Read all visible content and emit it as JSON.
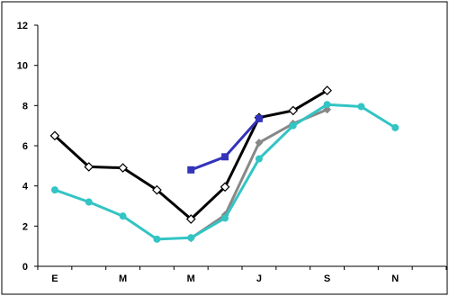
{
  "chart_data": {
    "type": "line",
    "title": "",
    "xlabel": "",
    "ylabel": "",
    "categories": [
      "E",
      "",
      "M",
      "",
      "M",
      "",
      "J",
      "",
      "S",
      "",
      "N",
      ""
    ],
    "ylim": [
      0,
      12
    ],
    "yticks": [
      0,
      2,
      4,
      6,
      8,
      10,
      12
    ],
    "grid": false,
    "legend": "none",
    "series": [
      {
        "color": "#000000",
        "marker": "diamond",
        "values": [
          6.5,
          4.95,
          4.9,
          3.8,
          2.35,
          3.95,
          7.4,
          7.75,
          8.75,
          null,
          null,
          null
        ]
      },
      {
        "color": "#3333bb",
        "marker": "square",
        "values": [
          null,
          null,
          null,
          null,
          4.8,
          5.45,
          7.35,
          null,
          null,
          null,
          null,
          null
        ]
      },
      {
        "color": "#888888",
        "marker": "diamond-filled",
        "values": [
          null,
          null,
          null,
          null,
          1.4,
          2.55,
          6.15,
          7.1,
          7.8,
          null,
          null,
          null
        ]
      },
      {
        "color": "#33c4c4",
        "marker": "circle",
        "values": [
          3.8,
          3.2,
          2.5,
          1.35,
          1.42,
          2.4,
          5.35,
          7.0,
          8.05,
          7.95,
          6.9,
          null
        ]
      }
    ]
  }
}
